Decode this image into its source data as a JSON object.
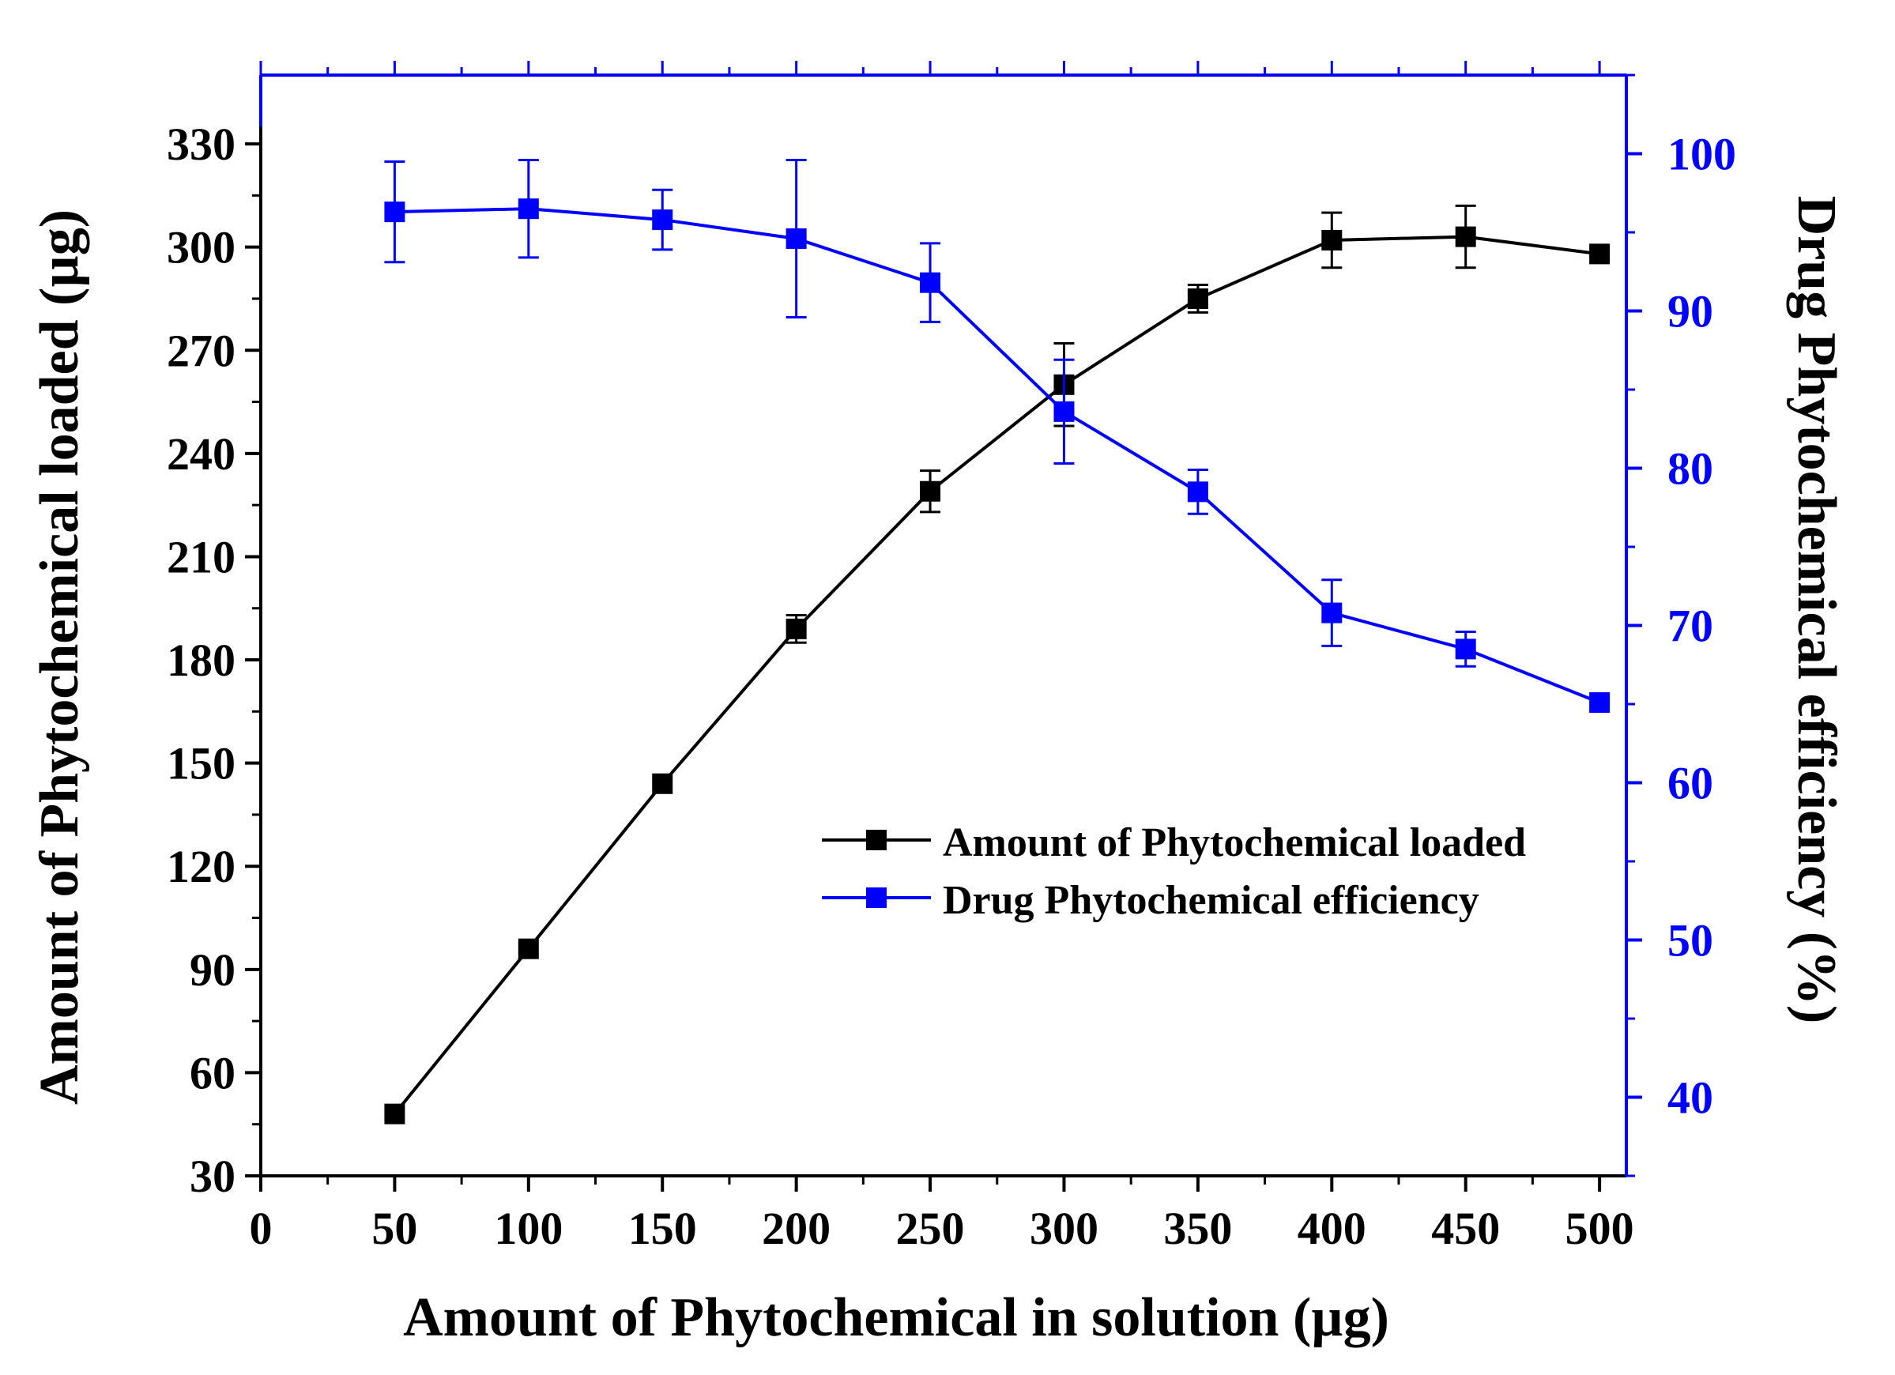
{
  "chart_data": {
    "type": "line",
    "title": "",
    "xlabel": "Amount of Phytochemical in solution (µg)",
    "ylabel_left": "Amount of Phytochemical loaded (µg)",
    "ylabel_right": "Drug Phytochemical efficiency (%)",
    "xlim": [
      0,
      510
    ],
    "ylim_left": [
      30,
      350
    ],
    "ylim_right": [
      35,
      105
    ],
    "x_ticks": [
      "0",
      "50",
      "100",
      "150",
      "200",
      "250",
      "300",
      "350",
      "400",
      "450",
      "500"
    ],
    "y_left_ticks": [
      "30",
      "60",
      "90",
      "120",
      "150",
      "180",
      "210",
      "240",
      "270",
      "300",
      "330"
    ],
    "y_right_ticks": [
      "40",
      "50",
      "60",
      "70",
      "80",
      "90",
      "100"
    ],
    "legend_position": "center-right",
    "colors": {
      "left_axis": "#000000",
      "right_axis": "#0000ff",
      "series_loaded": "#000000",
      "series_efficiency": "#0000ff"
    },
    "series": [
      {
        "name": "Amount of Phytochemical loaded",
        "axis": "left",
        "color": "#000000",
        "x": [
          50,
          100,
          150,
          200,
          250,
          300,
          350,
          400,
          450,
          500
        ],
        "values": [
          48,
          96,
          144,
          189,
          229,
          260,
          285,
          302,
          303,
          298
        ],
        "errors": [
          0,
          0,
          0,
          4,
          6,
          12,
          4,
          8,
          9,
          0
        ]
      },
      {
        "name": "Drug Phytochemical efficiency",
        "axis": "right",
        "color": "#0000ff",
        "x": [
          50,
          100,
          150,
          200,
          250,
          300,
          350,
          400,
          450,
          500
        ],
        "values": [
          96.3,
          96.5,
          95.8,
          94.6,
          91.8,
          83.6,
          78.5,
          70.8,
          68.5,
          65.1
        ],
        "errors": [
          3.2,
          3.1,
          1.9,
          5.0,
          2.5,
          3.3,
          1.4,
          2.1,
          1.1,
          0
        ]
      }
    ]
  }
}
